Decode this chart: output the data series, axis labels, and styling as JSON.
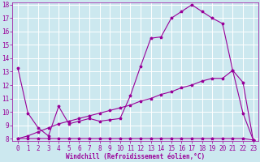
{
  "title": "",
  "xlabel": "Windchill (Refroidissement éolien,°C)",
  "background_color": "#cce8ef",
  "grid_color": "#ffffff",
  "line_color": "#990099",
  "xlim": [
    -0.5,
    23.5
  ],
  "ylim": [
    7.8,
    18.2
  ],
  "xticks": [
    0,
    1,
    2,
    3,
    4,
    5,
    6,
    7,
    8,
    9,
    10,
    11,
    12,
    13,
    14,
    15,
    16,
    17,
    18,
    19,
    20,
    21,
    22,
    23
  ],
  "yticks": [
    8,
    9,
    10,
    11,
    12,
    13,
    14,
    15,
    16,
    17,
    18
  ],
  "line1_x": [
    0,
    1,
    2,
    3,
    4,
    5,
    6,
    7,
    8,
    9,
    10,
    11,
    12,
    13,
    14,
    15,
    16,
    17,
    18,
    19,
    20,
    21,
    22,
    23
  ],
  "line1_y": [
    13.3,
    9.9,
    8.8,
    8.2,
    10.4,
    9.1,
    9.3,
    9.5,
    9.3,
    9.4,
    9.5,
    11.2,
    13.4,
    15.5,
    15.6,
    17.0,
    17.5,
    18.0,
    17.5,
    17.0,
    16.6,
    13.1,
    9.9,
    7.9
  ],
  "line2_x": [
    0,
    1,
    2,
    3,
    4,
    5,
    6,
    7,
    8,
    9,
    10,
    11,
    12,
    13,
    14,
    15,
    16,
    17,
    18,
    19,
    20,
    21,
    22,
    23
  ],
  "line2_y": [
    8.0,
    8.0,
    8.0,
    8.0,
    8.0,
    8.0,
    8.0,
    8.0,
    8.0,
    8.0,
    8.0,
    8.0,
    8.0,
    8.0,
    8.0,
    8.0,
    8.0,
    8.0,
    8.0,
    8.0,
    8.0,
    8.0,
    8.0,
    7.9
  ],
  "line3_x": [
    0,
    1,
    2,
    3,
    4,
    5,
    6,
    7,
    8,
    9,
    10,
    11,
    12,
    13,
    14,
    15,
    16,
    17,
    18,
    19,
    20,
    21,
    22,
    23
  ],
  "line3_y": [
    8.0,
    8.2,
    8.5,
    8.8,
    9.1,
    9.3,
    9.5,
    9.7,
    9.9,
    10.1,
    10.3,
    10.5,
    10.8,
    11.0,
    11.3,
    11.5,
    11.8,
    12.0,
    12.3,
    12.5,
    12.5,
    13.1,
    12.2,
    7.9
  ],
  "tick_fontsize": 5.5,
  "xlabel_fontsize": 5.5
}
